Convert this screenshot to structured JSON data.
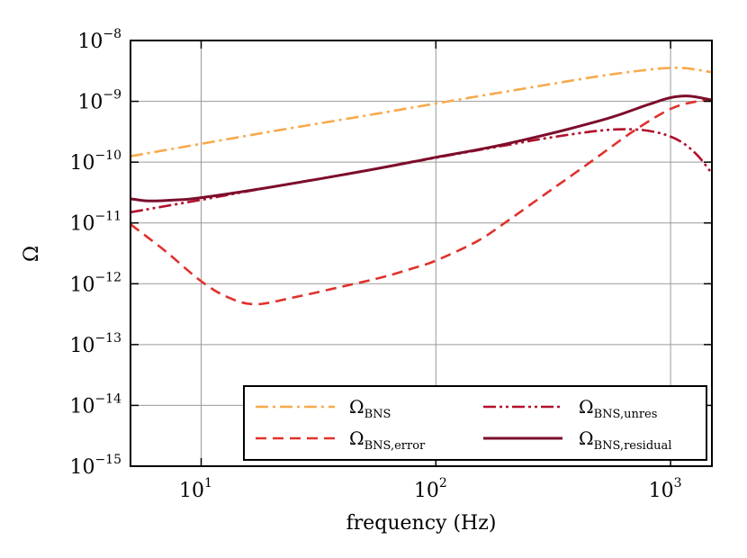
{
  "chart_data": {
    "type": "line",
    "xscale": "log",
    "yscale": "log",
    "xlim": [
      5,
      1500
    ],
    "ylim": [
      1e-15,
      1e-08
    ],
    "xlabel": "frequency (Hz)",
    "ylabel": "Ω",
    "grid": true,
    "legend_position": "bottom-right",
    "x_ticks": [
      {
        "value": 10,
        "base": "10",
        "exp": "1"
      },
      {
        "value": 100,
        "base": "10",
        "exp": "2"
      },
      {
        "value": 1000,
        "base": "10",
        "exp": "3"
      }
    ],
    "y_ticks": [
      {
        "value": 1e-08,
        "base": "10",
        "exp": "−8"
      },
      {
        "value": 1e-09,
        "base": "10",
        "exp": "−9"
      },
      {
        "value": 1e-10,
        "base": "10",
        "exp": "−10"
      },
      {
        "value": 1e-11,
        "base": "10",
        "exp": "−11"
      },
      {
        "value": 1e-12,
        "base": "10",
        "exp": "−12"
      },
      {
        "value": 1e-13,
        "base": "10",
        "exp": "−13"
      },
      {
        "value": 1e-14,
        "base": "10",
        "exp": "−14"
      },
      {
        "value": 1e-15,
        "base": "10",
        "exp": "−15"
      }
    ],
    "series": [
      {
        "name": "Ω_BNS",
        "label_main": "Ω",
        "label_sub": "BNS",
        "color": "#f9a94b",
        "dash": "dashdot",
        "x": [
          5,
          10,
          20,
          50,
          100,
          200,
          500,
          800,
          1000,
          1200,
          1500
        ],
        "y": [
          1.25e-10,
          2e-10,
          3.2e-10,
          5.8e-10,
          9.2e-10,
          1.45e-09,
          2.6e-09,
          3.3e-09,
          3.55e-09,
          3.45e-09,
          3e-09
        ]
      },
      {
        "name": "Ω_BNS,error",
        "label_main": "Ω",
        "label_sub": "BNS,error",
        "color": "#e0312c",
        "dash": "dashed",
        "x": [
          5,
          7,
          10,
          13,
          17,
          25,
          40,
          60,
          80,
          100,
          150,
          200,
          300,
          400,
          500,
          700,
          1000,
          1300,
          1500
        ],
        "y": [
          9.5e-12,
          3.5e-12,
          1.1e-12,
          6e-13,
          4.6e-13,
          6e-13,
          9e-13,
          1.3e-12,
          1.8e-12,
          2.4e-12,
          5e-12,
          1.05e-11,
          3.2e-11,
          7e-11,
          1.3e-10,
          3.3e-10,
          7.5e-10,
          1e-09,
          1.05e-09
        ]
      },
      {
        "name": "Ω_BNS,unres",
        "label_main": "Ω",
        "label_sub": "BNS,unres",
        "color": "#b1102c",
        "dash": "dashdotdot",
        "x": [
          5,
          10,
          20,
          50,
          100,
          200,
          300,
          500,
          700,
          900,
          1100,
          1300,
          1500
        ],
        "y": [
          1.5e-11,
          2.4e-11,
          3.9e-11,
          7.2e-11,
          1.18e-10,
          1.9e-10,
          2.5e-10,
          3.3e-10,
          3.45e-10,
          3e-10,
          2.2e-10,
          1.3e-10,
          6.5e-11
        ]
      },
      {
        "name": "Ω_BNS,residual",
        "label_main": "Ω",
        "label_sub": "BNS,residual",
        "color": "#7c0e2b",
        "dash": "solid",
        "x": [
          5,
          6,
          8,
          10,
          20,
          50,
          100,
          200,
          500,
          800,
          1000,
          1200,
          1500
        ],
        "y": [
          2.5e-11,
          2.3e-11,
          2.4e-11,
          2.6e-11,
          3.9e-11,
          7.2e-11,
          1.2e-10,
          2e-10,
          4.8e-10,
          8.8e-10,
          1.15e-09,
          1.22e-09,
          1.05e-09
        ]
      }
    ]
  }
}
